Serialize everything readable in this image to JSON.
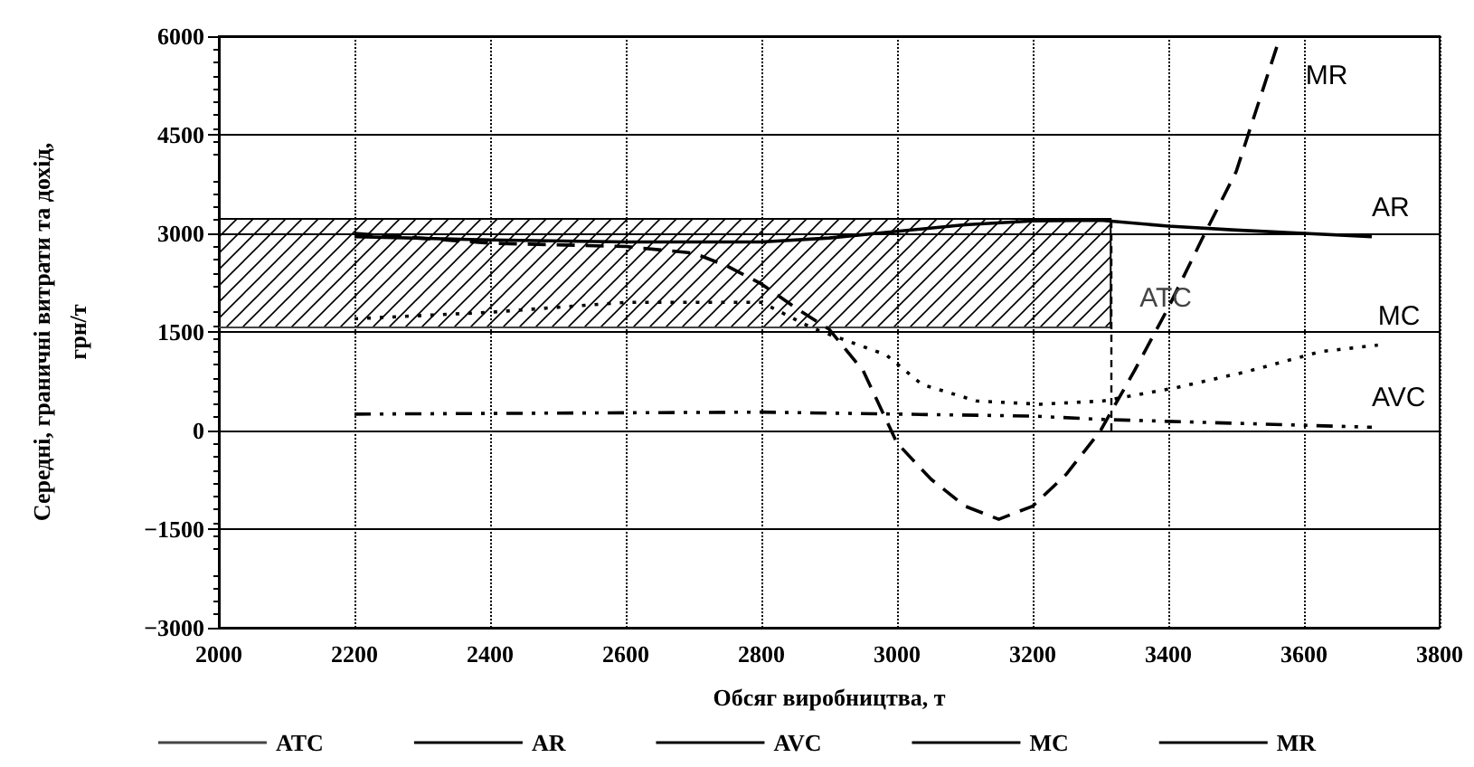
{
  "chart_data": {
    "type": "line",
    "xlabel": "Обсяг виробництва, т",
    "ylabel": "Середні, граничні витрати та дохід,\nгрн/т",
    "xlim": [
      2000,
      3800
    ],
    "xticks": [
      2000,
      2200,
      2400,
      2600,
      2800,
      3000,
      3200,
      3400,
      3600,
      3800
    ],
    "ylim": [
      -3000,
      6000
    ],
    "yticks": [
      -3000,
      -1500,
      0,
      1500,
      3000,
      4500,
      6000
    ],
    "grid": true,
    "legend": "bottom",
    "marker": "none",
    "series": [
      {
        "name": "ATC",
        "color": "#444444",
        "line_style": "solid",
        "x": [
          2000,
          3315
        ],
        "values": [
          1570,
          1570
        ]
      },
      {
        "name": "AR",
        "color": "#000000",
        "line_style": "solid",
        "x": [
          2200,
          2400,
          2600,
          2800,
          2900,
          3000,
          3100,
          3200,
          3300,
          3400,
          3500,
          3600,
          3700
        ],
        "values": [
          2950,
          2900,
          2870,
          2870,
          2930,
          3030,
          3130,
          3190,
          3200,
          3110,
          3050,
          3000,
          2950
        ]
      },
      {
        "name": "AVC",
        "color": "#000000",
        "line_style": "dashdot",
        "x": [
          2200,
          2800,
          3000,
          3200,
          3300,
          3400,
          3600,
          3700
        ],
        "values": [
          250,
          280,
          250,
          220,
          170,
          140,
          80,
          50
        ]
      },
      {
        "name": "MC",
        "color": "#000000",
        "line_style": "dotted",
        "x": [
          2200,
          2400,
          2600,
          2800,
          2877,
          2984,
          3037,
          3117,
          3211,
          3304,
          3411,
          3517,
          3624,
          3709
        ],
        "values": [
          1700,
          1800,
          1950,
          1950,
          1550,
          1150,
          700,
          450,
          400,
          450,
          650,
          900,
          1200,
          1300
        ]
      },
      {
        "name": "MR",
        "color": "#000000",
        "line_style": "dashed",
        "x": [
          2200,
          2400,
          2600,
          2700,
          2750,
          2800,
          2850,
          2900,
          2950,
          3000,
          3050,
          3100,
          3150,
          3200,
          3250,
          3300,
          3350,
          3400,
          3450,
          3500,
          3565
        ],
        "values": [
          3000,
          2850,
          2800,
          2700,
          2500,
          2230,
          1870,
          1540,
          910,
          -190,
          -740,
          -1150,
          -1350,
          -1150,
          -660,
          0,
          910,
          1870,
          2920,
          3940,
          6000
        ]
      }
    ],
    "ref_lines": [
      {
        "axis": "x",
        "value": 3315,
        "label": null,
        "color": "#000000",
        "line_style": "dashed"
      }
    ],
    "bands": [
      {
        "axis": "y",
        "from": 1570,
        "to": 3220,
        "label": null,
        "color": "#000000"
      }
    ]
  }
}
